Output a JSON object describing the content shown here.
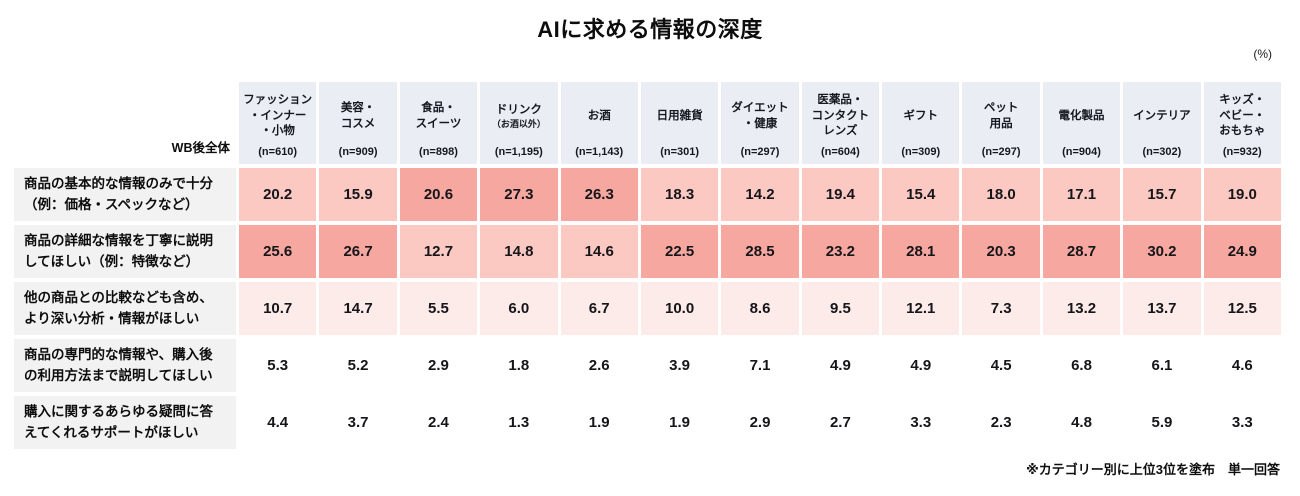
{
  "page": {
    "title": "AIに求める情報の深度",
    "unit_note": "(%)",
    "corner_label": "WB後全体",
    "footnote": "※カテゴリー別に上位3位を塗布　単一回答"
  },
  "chart_data": {
    "type": "heatmap",
    "title": "AIに求める情報の深度",
    "unit": "%",
    "highlight_rule": "top 3 values per category column are shaded (rank 1 darkest)",
    "columns": [
      {
        "label": "ファッション\n・インナー\n・小物",
        "n": "(n=610)"
      },
      {
        "label": "美容・\nコスメ",
        "n": "(n=909)"
      },
      {
        "label": "食品・\nスイーツ",
        "n": "(n=898)"
      },
      {
        "label": "ドリンク",
        "sublabel": "（お酒以外）",
        "n": "(n=1,195)"
      },
      {
        "label": "お酒",
        "n": "(n=1,143)"
      },
      {
        "label": "日用雑貨",
        "n": "(n=301)"
      },
      {
        "label": "ダイエット\n・健康",
        "n": "(n=297)"
      },
      {
        "label": "医薬品・\nコンタクト\nレンズ",
        "n": "(n=604)"
      },
      {
        "label": "ギフト",
        "n": "(n=309)"
      },
      {
        "label": "ペット\n用品",
        "n": "(n=297)"
      },
      {
        "label": "電化製品",
        "n": "(n=904)"
      },
      {
        "label": "インテリア",
        "n": "(n=302)"
      },
      {
        "label": "キッズ・\nベビー・\nおもちゃ",
        "n": "(n=932)"
      }
    ],
    "rows": [
      {
        "label": "商品の基本的な情報のみで十分\n（例：価格・スペックなど）",
        "values": [
          20.2,
          15.9,
          20.6,
          27.3,
          26.3,
          18.3,
          14.2,
          19.4,
          15.4,
          18.0,
          17.1,
          15.7,
          19.0
        ]
      },
      {
        "label": "商品の詳細な情報を丁寧に説明\nしてほしい（例：特徴など）",
        "values": [
          25.6,
          26.7,
          12.7,
          14.8,
          14.6,
          22.5,
          28.5,
          23.2,
          28.1,
          20.3,
          28.7,
          30.2,
          24.9
        ]
      },
      {
        "label": "他の商品との比較なども含め、\nより深い分析・情報がほしい",
        "values": [
          10.7,
          14.7,
          5.5,
          6.0,
          6.7,
          10.0,
          8.6,
          9.5,
          12.1,
          7.3,
          13.2,
          13.7,
          12.5
        ]
      },
      {
        "label": "商品の専門的な情報や、購入後\nの利用方法まで説明してほしい",
        "values": [
          5.3,
          5.2,
          2.9,
          1.8,
          2.6,
          3.9,
          7.1,
          4.9,
          4.9,
          4.5,
          6.8,
          6.1,
          4.6
        ]
      },
      {
        "label": "購入に関するあらゆる疑問に答\nえてくれるサポートがほしい",
        "values": [
          4.4,
          3.7,
          2.4,
          1.3,
          1.9,
          1.9,
          2.9,
          2.7,
          3.3,
          2.3,
          4.8,
          5.9,
          3.3
        ]
      }
    ],
    "rank_colors": {
      "rank1": "#f6a79f",
      "rank2": "#fbc8c2",
      "rank3": "#fcebe8",
      "unranked": "#ffffff"
    },
    "header_bg": "#eaedf4",
    "row_label_bg": "#f2f2f2"
  }
}
